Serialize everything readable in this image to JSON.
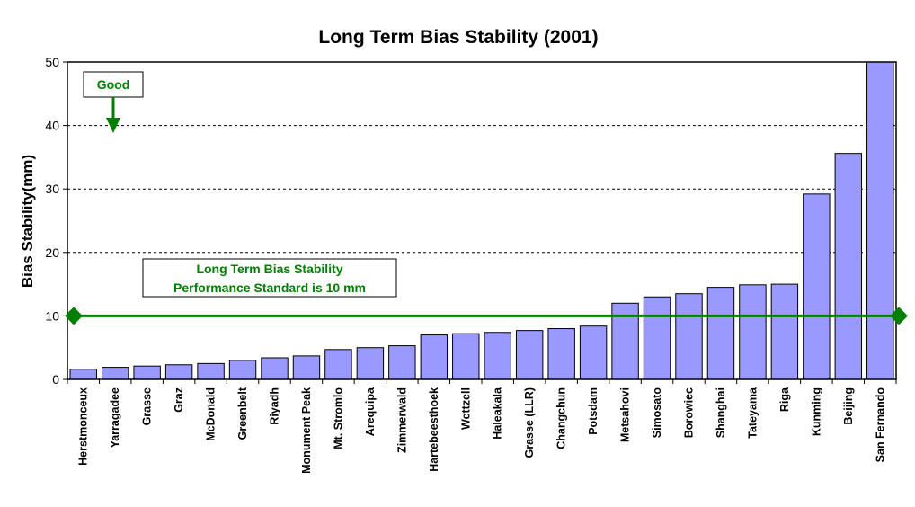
{
  "chart_data": {
    "type": "bar",
    "title": "Long Term Bias Stability (2001)",
    "xlabel": "",
    "ylabel": "Bias Stability(mm)",
    "ylim": [
      0,
      50
    ],
    "yticks": [
      "0",
      "10",
      "20",
      "30",
      "40",
      "50"
    ],
    "grid": true,
    "categories": [
      "Herstmonceux",
      "Yarragadee",
      "Grasse",
      "Graz",
      "McDonald",
      "Greenbelt",
      "Riyadh",
      "Monument Peak",
      "Mt. Stromlo",
      "Arequipa",
      "Zimmerwald",
      "Hartebeesthoek",
      "Wettzell",
      "Haleakala",
      "Grasse (LLR)",
      "Changchun",
      "Potsdam",
      "Metsahovi",
      "Simosato",
      "Borowiec",
      "Shanghai",
      "Tateyama",
      "Riga",
      "Kunming",
      "Beijing",
      "San Fernando"
    ],
    "values": [
      1.6,
      1.9,
      2.1,
      2.3,
      2.5,
      3.0,
      3.4,
      3.7,
      4.7,
      5.0,
      5.3,
      7.0,
      7.2,
      7.4,
      7.7,
      8.0,
      8.4,
      12.0,
      13.0,
      13.5,
      14.5,
      14.9,
      15.0,
      29.2,
      35.6,
      50.0
    ],
    "bar_color": "#9999ff",
    "reference_line": {
      "value": 10,
      "color": "#008000"
    },
    "annotations": {
      "standard_line1": "Long Term Bias Stability",
      "standard_line2": "Performance Standard is 10 mm",
      "good_label": "Good"
    }
  }
}
